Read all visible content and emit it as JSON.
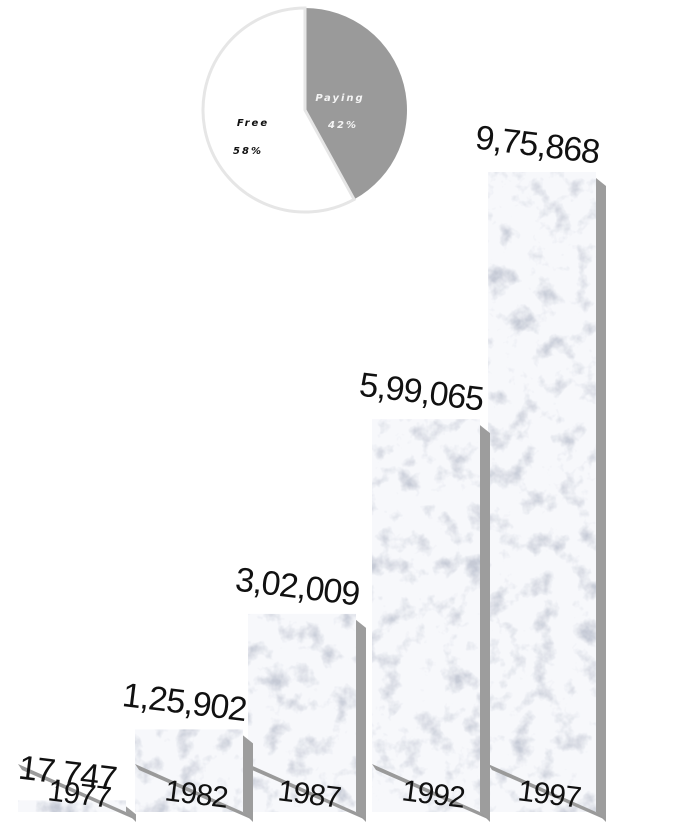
{
  "chart_data": [
    {
      "type": "pie",
      "slices": [
        {
          "label": "Free",
          "value": 58,
          "value_text": "58%",
          "color": "#ffffff"
        },
        {
          "label": "Paying",
          "value": 42,
          "value_text": "42%",
          "color": "#9a9a9a"
        }
      ]
    },
    {
      "type": "bar",
      "categories": [
        "1977",
        "1982",
        "1987",
        "1992",
        "1997"
      ],
      "values": [
        17747,
        125902,
        302009,
        599065,
        975868
      ],
      "labels": [
        "17,747",
        "1,25,902",
        "3,02,009",
        "5,99,065",
        "9,75,868"
      ],
      "ylim": [
        0,
        975868
      ]
    }
  ]
}
